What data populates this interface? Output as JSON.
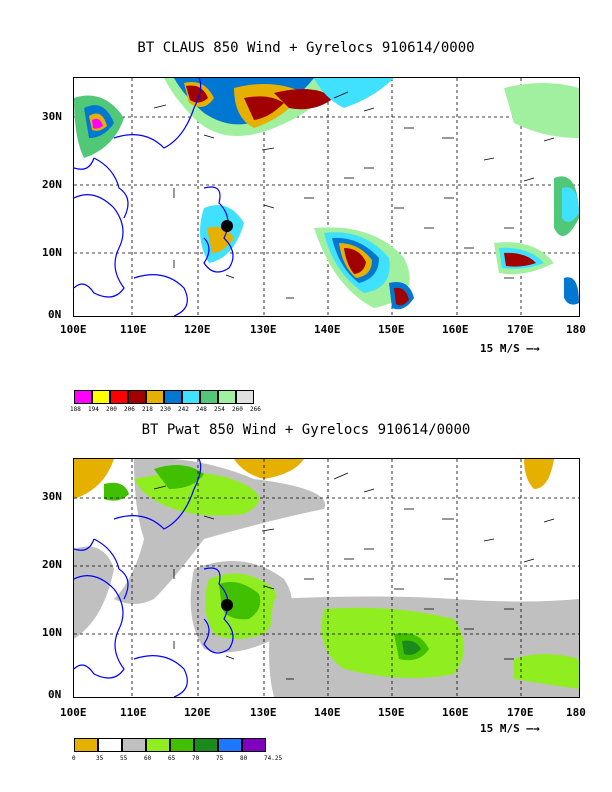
{
  "panel1": {
    "title": "BT CLAUS 850 Wind + Gyrelocs 910614/0000",
    "lat_ticks": [
      "30N",
      "20N",
      "10N",
      "0N"
    ],
    "lon_ticks": [
      "100E",
      "110E",
      "120E",
      "130E",
      "140E",
      "150E",
      "160E",
      "170E",
      "180"
    ],
    "scale_text": "15 M/S",
    "legend": {
      "colors": [
        "#ff00ff",
        "#ffff00",
        "#ff0000",
        "#a00000",
        "#e6b000",
        "#0078d2",
        "#40e0ff",
        "#50c878",
        "#a0f0a0",
        "#e0e0e0"
      ],
      "labels": [
        "188",
        "194",
        "200",
        "206",
        "218",
        "230",
        "242",
        "248",
        "254",
        "260",
        "266"
      ]
    }
  },
  "panel2": {
    "title": "BT Pwat 850 Wind + Gyrelocs 910614/0000",
    "lat_ticks": [
      "30N",
      "20N",
      "10N",
      "0N"
    ],
    "lon_ticks": [
      "100E",
      "110E",
      "120E",
      "130E",
      "140E",
      "150E",
      "160E",
      "170E",
      "180"
    ],
    "scale_text": "15 M/S",
    "legend": {
      "colors": [
        "#e6b000",
        "#ffffff",
        "#c0c0c0",
        "#90ee20",
        "#40c000",
        "#1a8a1a",
        "#1e78ff",
        "#8000c0"
      ],
      "labels": [
        "0",
        "35",
        "55",
        "60",
        "65",
        "70",
        "75",
        "80",
        "74.25"
      ]
    }
  }
}
